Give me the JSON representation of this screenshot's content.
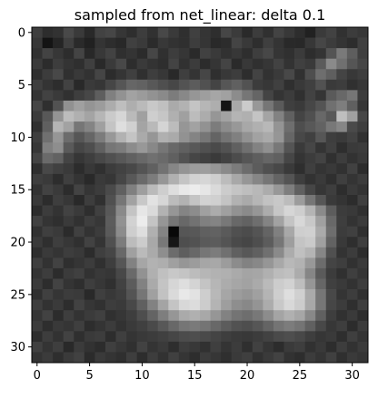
{
  "chart_data": {
    "type": "heatmap",
    "title": "sampled from net_linear: delta 0.1",
    "xlabel": "",
    "ylabel": "",
    "colormap": "gray",
    "grid": false,
    "legend": "none",
    "xlim": [
      -0.5,
      31.5
    ],
    "ylim": [
      31.5,
      -0.5
    ],
    "x_ticks": [
      0,
      5,
      10,
      15,
      20,
      25,
      30
    ],
    "y_ticks": [
      0,
      5,
      10,
      15,
      20,
      25,
      30
    ],
    "x_tick_labels": [
      "0",
      "5",
      "10",
      "15",
      "20",
      "25",
      "30"
    ],
    "y_tick_labels": [
      "0",
      "5",
      "10",
      "15",
      "20",
      "25",
      "30"
    ],
    "rows": 32,
    "cols": 32,
    "value_range": [
      0,
      255
    ],
    "matrix": [
      [
        62,
        45,
        50,
        73,
        58,
        41,
        66,
        70,
        54,
        46,
        61,
        49,
        72,
        58,
        47,
        64,
        53,
        46,
        70,
        59,
        42,
        60,
        48,
        67,
        56,
        45,
        33,
        58,
        66,
        49,
        60,
        55
      ],
      [
        55,
        20,
        37,
        63,
        42,
        33,
        52,
        45,
        40,
        64,
        58,
        43,
        56,
        50,
        47,
        61,
        53,
        41,
        44,
        68,
        57,
        46,
        63,
        52,
        41,
        40,
        55,
        70,
        60,
        52,
        45,
        64
      ],
      [
        49,
        67,
        55,
        45,
        68,
        40,
        56,
        66,
        47,
        52,
        43,
        70,
        48,
        61,
        54,
        42,
        65,
        58,
        49,
        55,
        46,
        62,
        71,
        53,
        48,
        59,
        45,
        52,
        84,
        122,
        94,
        63
      ],
      [
        58,
        44,
        61,
        52,
        47,
        63,
        41,
        58,
        72,
        45,
        58,
        51,
        46,
        67,
        49,
        60,
        44,
        53,
        68,
        42,
        56,
        48,
        54,
        66,
        51,
        64,
        58,
        91,
        138,
        112,
        85,
        70
      ],
      [
        46,
        60,
        72,
        48,
        57,
        50,
        69,
        44,
        53,
        64,
        48,
        62,
        55,
        41,
        63,
        52,
        70,
        47,
        56,
        61,
        45,
        67,
        50,
        58,
        72,
        49,
        78,
        110,
        95,
        68,
        56,
        62
      ],
      [
        63,
        52,
        45,
        66,
        41,
        58,
        54,
        70,
        86,
        102,
        98,
        88,
        79,
        71,
        83,
        92,
        81,
        68,
        86,
        96,
        82,
        60,
        55,
        64,
        47,
        57,
        64,
        82,
        58,
        61,
        48,
        55
      ],
      [
        51,
        66,
        58,
        49,
        62,
        71,
        94,
        128,
        146,
        162,
        155,
        146,
        138,
        124,
        136,
        150,
        158,
        166,
        161,
        140,
        118,
        101,
        68,
        52,
        60,
        48,
        66,
        53,
        90,
        104,
        118,
        60
      ],
      [
        70,
        47,
        82,
        145,
        160,
        148,
        156,
        172,
        190,
        174,
        186,
        200,
        192,
        170,
        178,
        196,
        182,
        174,
        20,
        168,
        203,
        152,
        118,
        90,
        63,
        58,
        71,
        84,
        112,
        126,
        96,
        54
      ],
      [
        59,
        88,
        148,
        188,
        176,
        164,
        182,
        202,
        214,
        186,
        160,
        206,
        198,
        176,
        160,
        188,
        172,
        150,
        162,
        180,
        176,
        196,
        164,
        130,
        96,
        68,
        80,
        104,
        88,
        190,
        160,
        70
      ],
      [
        48,
        96,
        180,
        162,
        118,
        132,
        160,
        196,
        222,
        208,
        164,
        185,
        212,
        188,
        150,
        162,
        146,
        124,
        140,
        152,
        168,
        176,
        184,
        148,
        110,
        78,
        88,
        98,
        120,
        134,
        74,
        62
      ],
      [
        62,
        112,
        150,
        108,
        86,
        102,
        124,
        152,
        178,
        196,
        170,
        150,
        176,
        170,
        146,
        132,
        118,
        100,
        116,
        128,
        146,
        162,
        170,
        150,
        102,
        72,
        64,
        86,
        62,
        58,
        66,
        49
      ],
      [
        55,
        128,
        142,
        90,
        70,
        78,
        96,
        118,
        124,
        140,
        152,
        136,
        118,
        104,
        96,
        88,
        80,
        74,
        82,
        96,
        112,
        130,
        144,
        120,
        84,
        58,
        70,
        52,
        64,
        46,
        58,
        60
      ],
      [
        68,
        106,
        98,
        68,
        54,
        62,
        72,
        80,
        88,
        96,
        104,
        112,
        106,
        96,
        82,
        70,
        64,
        58,
        66,
        76,
        86,
        94,
        102,
        96,
        70,
        52,
        60,
        67,
        48,
        61,
        50,
        57
      ],
      [
        47,
        72,
        64,
        58,
        44,
        56,
        48,
        60,
        66,
        72,
        84,
        96,
        114,
        134,
        148,
        156,
        158,
        150,
        138,
        124,
        108,
        92,
        80,
        72,
        58,
        46,
        63,
        52,
        57,
        49,
        65,
        44
      ],
      [
        62,
        58,
        45,
        63,
        52,
        41,
        58,
        54,
        70,
        88,
        106,
        124,
        150,
        176,
        196,
        210,
        214,
        206,
        188,
        168,
        150,
        134,
        118,
        100,
        84,
        62,
        50,
        58,
        47,
        63,
        52,
        60
      ],
      [
        50,
        66,
        58,
        44,
        67,
        53,
        60,
        74,
        96,
        128,
        158,
        186,
        206,
        222,
        232,
        236,
        230,
        218,
        204,
        196,
        190,
        184,
        172,
        152,
        126,
        96,
        70,
        54,
        62,
        45,
        58,
        51
      ],
      [
        57,
        44,
        62,
        55,
        41,
        61,
        48,
        80,
        118,
        162,
        200,
        226,
        214,
        188,
        178,
        196,
        210,
        208,
        196,
        178,
        170,
        182,
        194,
        200,
        188,
        156,
        118,
        86,
        58,
        52,
        44,
        63
      ],
      [
        44,
        60,
        51,
        66,
        58,
        46,
        64,
        88,
        138,
        196,
        230,
        218,
        178,
        150,
        132,
        140,
        160,
        172,
        160,
        146,
        138,
        150,
        172,
        198,
        214,
        206,
        180,
        138,
        92,
        60,
        57,
        48
      ],
      [
        65,
        52,
        47,
        58,
        49,
        62,
        55,
        92,
        146,
        210,
        236,
        196,
        150,
        118,
        104,
        114,
        128,
        132,
        120,
        104,
        98,
        110,
        132,
        162,
        196,
        216,
        200,
        160,
        104,
        62,
        51,
        59
      ],
      [
        49,
        63,
        58,
        43,
        64,
        51,
        60,
        90,
        140,
        206,
        222,
        176,
        132,
        8,
        86,
        88,
        96,
        98,
        90,
        80,
        76,
        84,
        100,
        128,
        168,
        206,
        208,
        170,
        110,
        60,
        64,
        47
      ],
      [
        58,
        47,
        62,
        55,
        48,
        66,
        52,
        80,
        124,
        188,
        204,
        168,
        120,
        22,
        78,
        82,
        90,
        92,
        84,
        74,
        70,
        78,
        92,
        118,
        158,
        196,
        202,
        160,
        98,
        57,
        46,
        62
      ],
      [
        46,
        58,
        52,
        61,
        57,
        44,
        63,
        70,
        104,
        160,
        186,
        170,
        142,
        108,
        94,
        104,
        118,
        124,
        112,
        96,
        88,
        96,
        112,
        138,
        172,
        192,
        180,
        134,
        80,
        51,
        60,
        45
      ],
      [
        63,
        50,
        66,
        47,
        53,
        60,
        48,
        62,
        86,
        130,
        166,
        178,
        174,
        160,
        150,
        156,
        166,
        168,
        156,
        140,
        130,
        136,
        150,
        168,
        184,
        178,
        152,
        108,
        68,
        62,
        49,
        58
      ],
      [
        52,
        61,
        44,
        59,
        64,
        50,
        57,
        54,
        72,
        106,
        146,
        176,
        192,
        200,
        196,
        188,
        182,
        178,
        176,
        170,
        164,
        166,
        176,
        188,
        192,
        172,
        134,
        90,
        60,
        48,
        63,
        53
      ],
      [
        59,
        45,
        67,
        52,
        46,
        62,
        55,
        48,
        66,
        92,
        130,
        170,
        196,
        214,
        222,
        212,
        196,
        182,
        172,
        166,
        162,
        170,
        186,
        204,
        210,
        190,
        150,
        102,
        64,
        58,
        50,
        61
      ],
      [
        47,
        64,
        53,
        60,
        58,
        41,
        63,
        56,
        62,
        84,
        118,
        160,
        194,
        218,
        232,
        226,
        206,
        184,
        166,
        156,
        150,
        160,
        180,
        206,
        222,
        208,
        170,
        118,
        72,
        52,
        61,
        48
      ],
      [
        62,
        50,
        58,
        45,
        66,
        54,
        49,
        61,
        58,
        72,
        96,
        130,
        164,
        196,
        216,
        220,
        204,
        180,
        158,
        142,
        136,
        148,
        172,
        200,
        216,
        204,
        168,
        118,
        70,
        60,
        47,
        63
      ],
      [
        53,
        66,
        44,
        62,
        51,
        59,
        64,
        48,
        54,
        62,
        78,
        100,
        126,
        150,
        170,
        176,
        168,
        150,
        130,
        116,
        110,
        120,
        140,
        164,
        176,
        166,
        136,
        96,
        62,
        49,
        58,
        45
      ],
      [
        60,
        46,
        57,
        53,
        63,
        45,
        52,
        60,
        50,
        58,
        64,
        74,
        88,
        104,
        118,
        122,
        116,
        104,
        92,
        82,
        78,
        86,
        100,
        116,
        124,
        116,
        96,
        72,
        55,
        62,
        44,
        60
      ],
      [
        45,
        61,
        50,
        66,
        47,
        58,
        61,
        45,
        63,
        52,
        57,
        60,
        64,
        70,
        76,
        78,
        74,
        68,
        62,
        58,
        56,
        60,
        66,
        74,
        78,
        72,
        62,
        54,
        58,
        46,
        63,
        52
      ],
      [
        64,
        52,
        62,
        41,
        59,
        50,
        44,
        63,
        55,
        48,
        66,
        52,
        58,
        46,
        61,
        56,
        49,
        63,
        52,
        60,
        47,
        65,
        53,
        44,
        58,
        62,
        49,
        57,
        45,
        61,
        50,
        59
      ],
      [
        51,
        59,
        46,
        58,
        65,
        43,
        58,
        52,
        47,
        62,
        45,
        61,
        50,
        64,
        53,
        45,
        60,
        54,
        47,
        58,
        63,
        49,
        58,
        66,
        50,
        45,
        60,
        52,
        64,
        47,
        58,
        53
      ]
    ]
  }
}
